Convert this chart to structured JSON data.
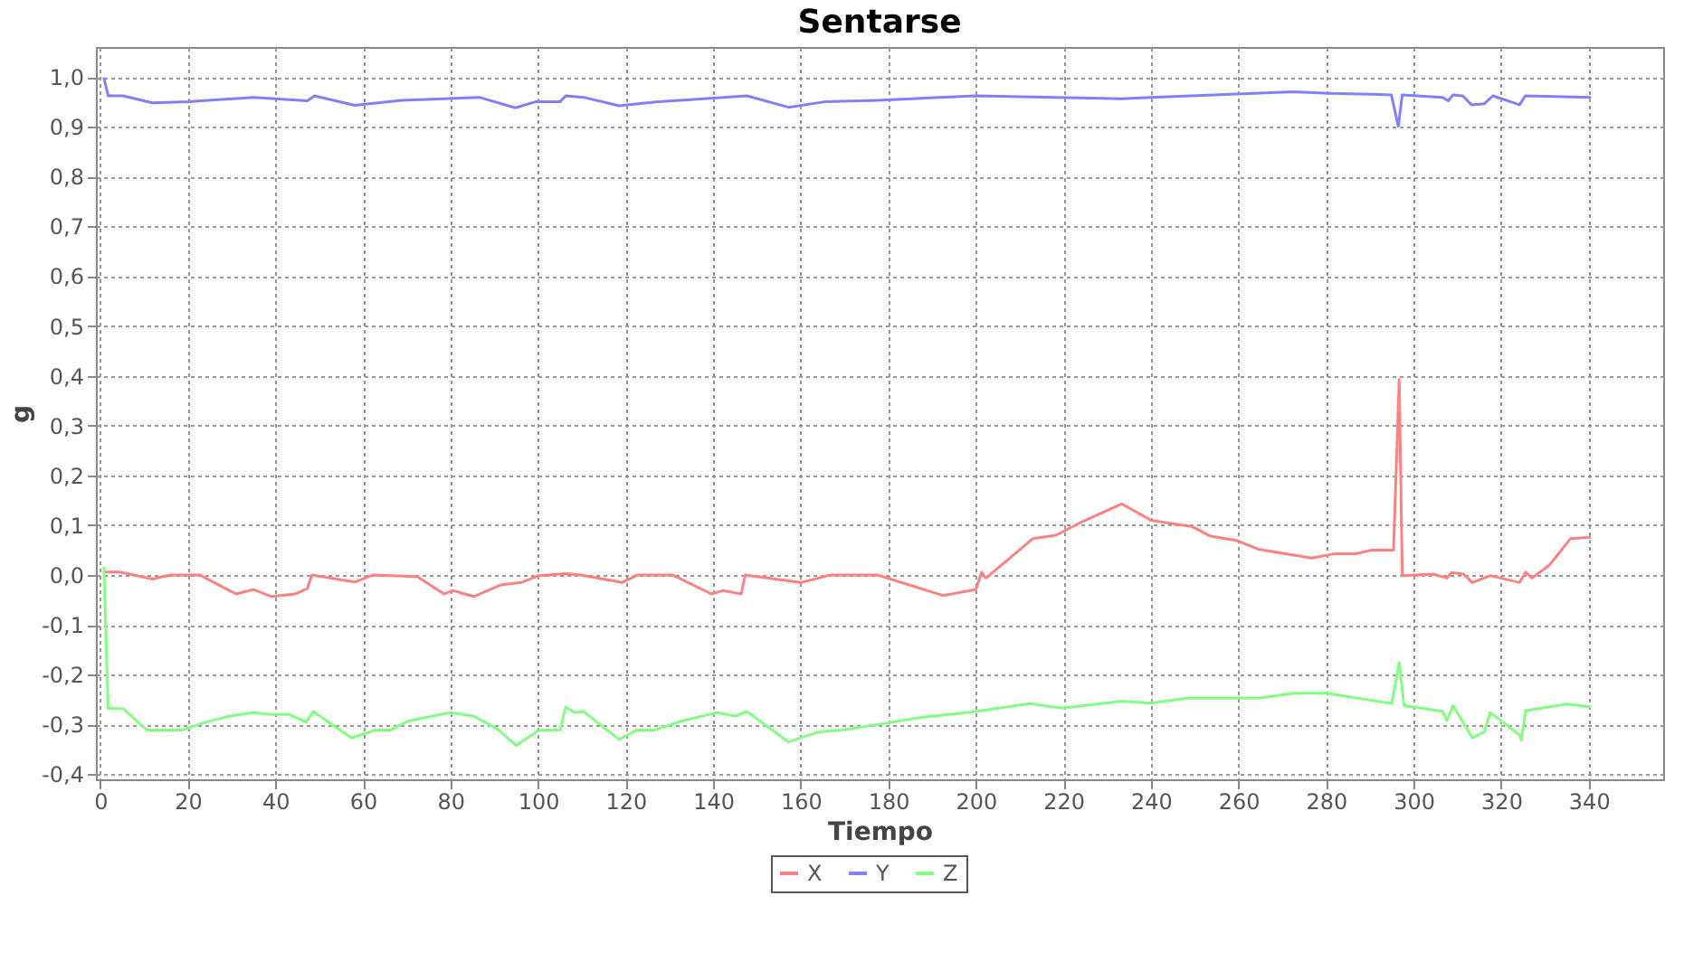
{
  "chart_data": {
    "type": "line",
    "title": "Sentarse",
    "xlabel": "Tiempo",
    "ylabel": "g",
    "xlim": [
      -1,
      357
    ],
    "ylim": [
      -0.41,
      1.06
    ],
    "xticks": [
      0,
      20,
      40,
      60,
      80,
      100,
      120,
      140,
      160,
      180,
      200,
      220,
      240,
      260,
      280,
      300,
      320,
      340
    ],
    "yticks": [
      {
        "value": -0.4,
        "label": "-0,4"
      },
      {
        "value": -0.3,
        "label": "-0,3"
      },
      {
        "value": -0.2,
        "label": "-0,2"
      },
      {
        "value": -0.1,
        "label": "-0,1"
      },
      {
        "value": 0,
        "label": "0,0"
      },
      {
        "value": 0.1,
        "label": "0,1"
      },
      {
        "value": 0.2,
        "label": "0,2"
      },
      {
        "value": 0.3,
        "label": "0,3"
      },
      {
        "value": 0.4,
        "label": "0,4"
      },
      {
        "value": 0.5,
        "label": "0,5"
      },
      {
        "value": 0.6,
        "label": "0,6"
      },
      {
        "value": 0.7,
        "label": "0,7"
      },
      {
        "value": 0.8,
        "label": "0,8"
      },
      {
        "value": 0.9,
        "label": "0,9"
      },
      {
        "value": 1,
        "label": "1,0"
      }
    ],
    "grid": true,
    "legend": "bottom",
    "marker": "none",
    "line_style": "solid",
    "series": [
      {
        "name": "X",
        "color": "#ff8080",
        "x": [
          0.8,
          4.5,
          11.9,
          16,
          22.8,
          31,
          35,
          39.1,
          44.5,
          47.3,
          48.3,
          58.1,
          62.2,
          72.4,
          78.5,
          80.5,
          85.3,
          91.4,
          96.1,
          100.2,
          106.3,
          109.7,
          119.2,
          122.6,
          130.8,
          139.6,
          142.3,
          146.4,
          147.3,
          160,
          166.7,
          177.6,
          192.5,
          200,
          201.3,
          202.3,
          213,
          218.3,
          223.8,
          233.3,
          240,
          249.5,
          253.6,
          259.7,
          264.5,
          276.7,
          282.1,
          286.9,
          290.3,
          295.4,
          296.7,
          297.4,
          304.5,
          307.6,
          308.6,
          311.4,
          313.4,
          317.5,
          324.2,
          325.6,
          327,
          331,
          335.8,
          340.5
        ],
        "values": [
          0.006,
          0.006,
          -0.008,
          0,
          0,
          -0.038,
          -0.029,
          -0.043,
          -0.038,
          -0.027,
          0,
          -0.014,
          0,
          -0.003,
          -0.038,
          -0.031,
          -0.043,
          -0.02,
          -0.015,
          -0.001,
          0.003,
          0,
          -0.015,
          0,
          0,
          -0.038,
          -0.031,
          -0.038,
          0,
          -0.015,
          0,
          0,
          -0.041,
          -0.029,
          0.006,
          -0.006,
          0.073,
          0.08,
          0.105,
          0.143,
          0.11,
          0.097,
          0.078,
          0.069,
          0.052,
          0.034,
          0.043,
          0.043,
          0.05,
          0.05,
          0.393,
          -0.001,
          0.002,
          -0.006,
          0.005,
          0.002,
          -0.015,
          -0.001,
          -0.015,
          0.006,
          -0.006,
          0.02,
          0.073,
          0.076
        ]
      },
      {
        "name": "Y",
        "color": "#8080ff",
        "x": [
          0.8,
          1.8,
          5.2,
          11.9,
          20.1,
          35,
          47.3,
          48.9,
          58.1,
          68.8,
          86.6,
          94.8,
          99.4,
          105,
          106.3,
          110.4,
          118.5,
          127.4,
          147.7,
          157.2,
          165.4,
          177.6,
          200,
          218.3,
          233.3,
          240,
          272.5,
          280.7,
          294.9,
          296.5,
          297.4,
          306.6,
          307.9,
          309,
          311.2,
          313.2,
          316.1,
          318.1,
          324.2,
          325.5,
          340.5
        ],
        "values": [
          0.999,
          0.962,
          0.962,
          0.948,
          0.95,
          0.959,
          0.952,
          0.962,
          0.943,
          0.953,
          0.959,
          0.938,
          0.95,
          0.95,
          0.962,
          0.959,
          0.942,
          0.95,
          0.962,
          0.939,
          0.95,
          0.953,
          0.962,
          0.959,
          0.956,
          0.959,
          0.97,
          0.967,
          0.964,
          0.901,
          0.964,
          0.959,
          0.952,
          0.964,
          0.962,
          0.944,
          0.946,
          0.962,
          0.944,
          0.962,
          0.959
        ]
      },
      {
        "name": "Z",
        "color": "#80ff80",
        "x": [
          0.8,
          1.8,
          5.2,
          10.6,
          18.7,
          24.2,
          29.6,
          35,
          39.1,
          43.2,
          47,
          48.6,
          57.4,
          62.9,
          66.3,
          70.3,
          79.8,
          85.3,
          90.7,
          95,
          100.2,
          105,
          106.3,
          108.4,
          110.4,
          118.5,
          122.6,
          126.7,
          132.8,
          140.9,
          145,
          147.7,
          157.2,
          164,
          169.5,
          177.6,
          187.1,
          200,
          212.2,
          219.7,
          233.3,
          240,
          248.2,
          264.5,
          272.7,
          280.1,
          295,
          296.7,
          297.8,
          302.5,
          306.6,
          307.6,
          309,
          313.4,
          316.1,
          317.5,
          324.2,
          324.6,
          325.6,
          335.1,
          340.5
        ],
        "values": [
          0.017,
          -0.268,
          -0.268,
          -0.311,
          -0.311,
          -0.295,
          -0.283,
          -0.276,
          -0.28,
          -0.28,
          -0.295,
          -0.274,
          -0.327,
          -0.311,
          -0.311,
          -0.293,
          -0.276,
          -0.283,
          -0.309,
          -0.342,
          -0.311,
          -0.311,
          -0.265,
          -0.276,
          -0.274,
          -0.33,
          -0.311,
          -0.311,
          -0.293,
          -0.276,
          -0.283,
          -0.274,
          -0.335,
          -0.315,
          -0.311,
          -0.3,
          -0.286,
          -0.274,
          -0.258,
          -0.267,
          -0.253,
          -0.257,
          -0.247,
          -0.247,
          -0.237,
          -0.237,
          -0.258,
          -0.175,
          -0.262,
          -0.268,
          -0.274,
          -0.292,
          -0.262,
          -0.327,
          -0.315,
          -0.276,
          -0.321,
          -0.332,
          -0.272,
          -0.259,
          -0.265
        ]
      }
    ]
  }
}
